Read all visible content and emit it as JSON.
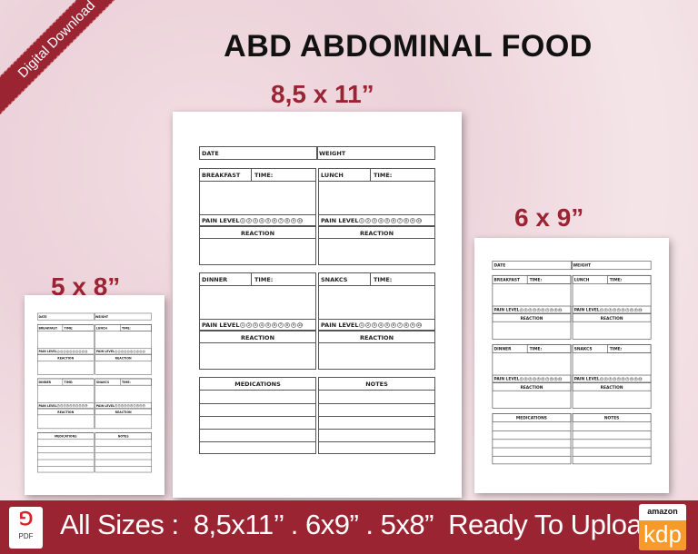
{
  "ribbon": "Digital Download",
  "title": "ABD ABDOMINAL FOOD",
  "sizes": {
    "large": "8,5 x 11”",
    "medium": "6 x 9”",
    "small": "5 x 8”"
  },
  "planner": {
    "date": "DATE",
    "weight": "WEIGHT",
    "meals": [
      {
        "name": "BREAKFAST"
      },
      {
        "name": "LUNCH"
      },
      {
        "name": "DINNER"
      },
      {
        "name": "SNAKCS"
      }
    ],
    "time": "TIME:",
    "pain_level": "PAIN LEVEL",
    "pain_scale": [
      "1",
      "2",
      "3",
      "4",
      "5",
      "6",
      "7",
      "8",
      "9",
      "10"
    ],
    "reaction": "REACTION",
    "medications": "MEDICATIONS",
    "notes": "NOTES"
  },
  "banner": {
    "text": "All Sizes :  8,5x11’’ . 6x9” . 5x8”  Ready To Upload",
    "pdf_label": "PDF",
    "amazon": "amazon",
    "kdp": "kdp"
  },
  "colors": {
    "accent": "#9b2432",
    "kdp_orange": "#f79a2c"
  }
}
